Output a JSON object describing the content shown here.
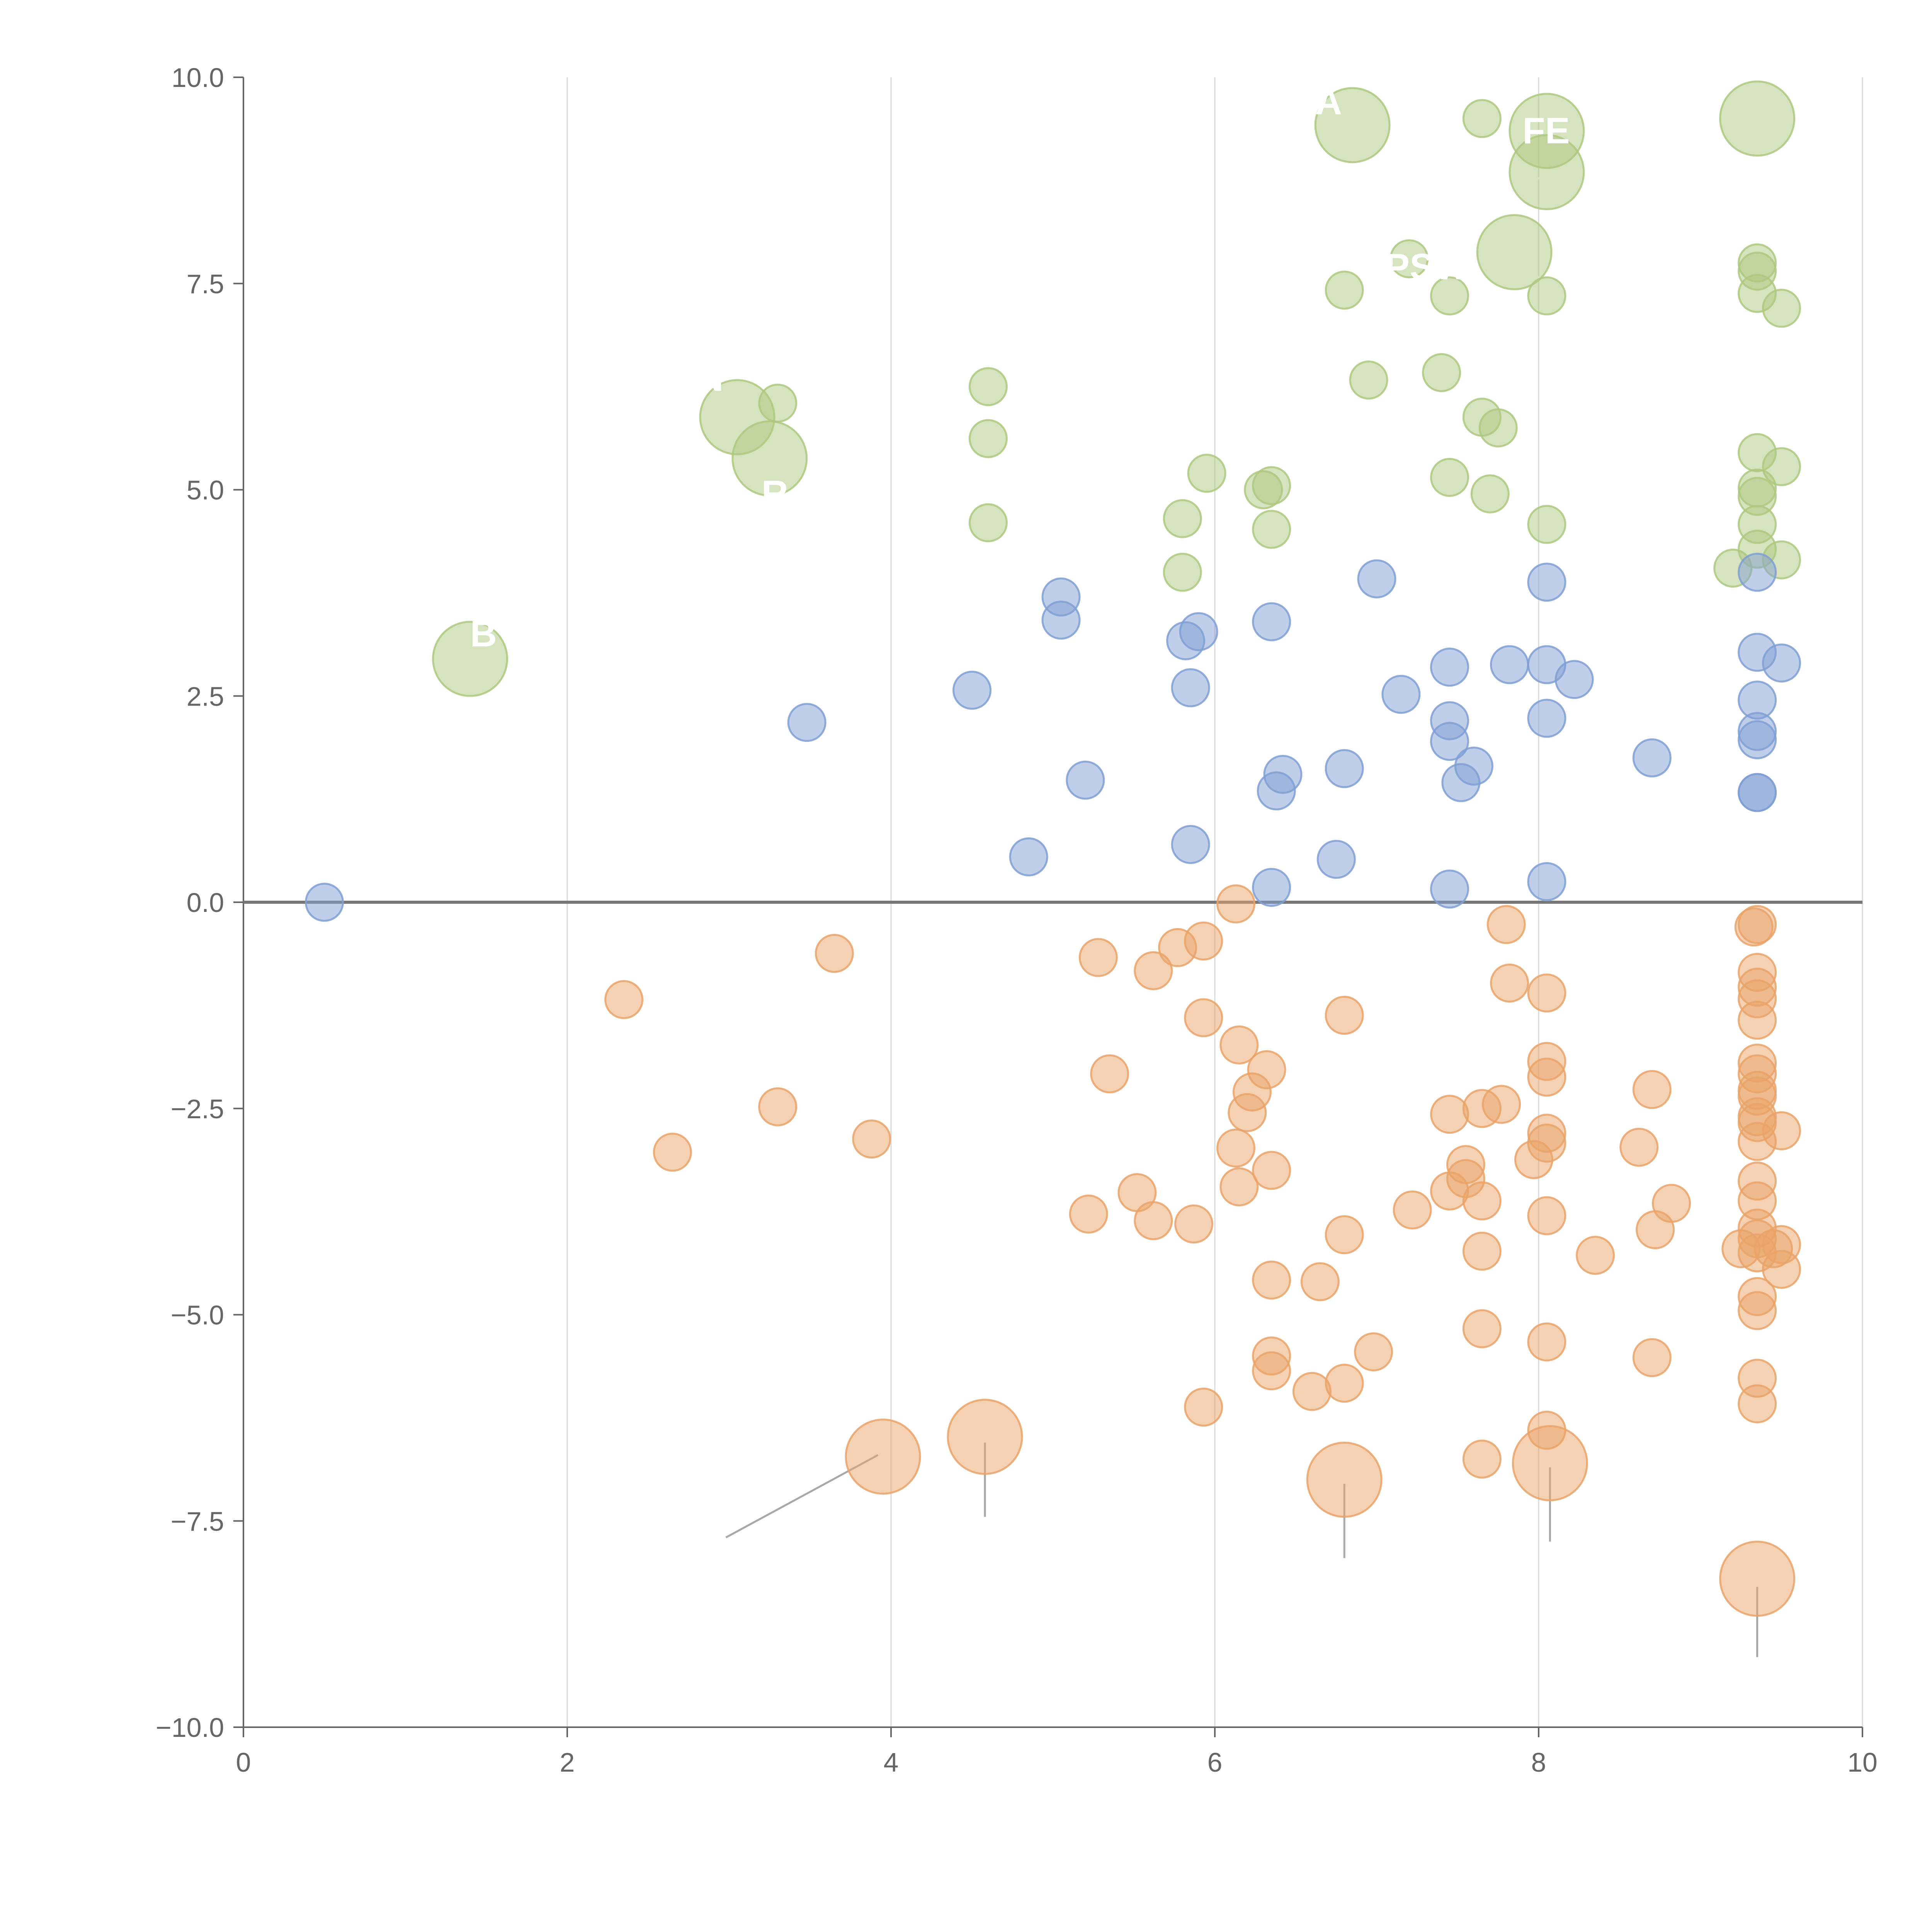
{
  "chart_data": {
    "type": "scatter",
    "title": "",
    "xlabel": "",
    "ylabel": "",
    "xlim": [
      0,
      10
    ],
    "ylim": [
      -10,
      10
    ],
    "x_ticks": [
      "0",
      "2",
      "4",
      "6",
      "8",
      "10"
    ],
    "y_ticks": [
      "−10.0",
      "−7.5",
      "−5.0",
      "−2.5",
      "0.0",
      "2.5",
      "5.0",
      "7.5",
      "10.0"
    ],
    "x_tick_values": [
      0,
      2,
      4,
      6,
      8,
      10
    ],
    "y_tick_values": [
      -10,
      -7.5,
      -5,
      -2.5,
      0,
      2.5,
      5,
      7.5,
      10
    ],
    "grid": "vertical lines at x ticks",
    "reference_line": 0,
    "colors": {
      "positive": "#aec87f",
      "middle": "#7f9fd3",
      "negative": "#e9a368"
    },
    "series": [
      {
        "name": "positive",
        "color": "#aec87f",
        "points": [
          [
            6.85,
            9.42,
            3
          ],
          [
            7.65,
            9.5,
            1
          ],
          [
            8.05,
            9.35,
            3
          ],
          [
            9.35,
            9.5,
            3
          ],
          [
            8.05,
            8.85,
            3
          ],
          [
            7.2,
            7.8,
            1
          ],
          [
            7.85,
            7.88,
            3
          ],
          [
            6.8,
            7.42,
            1
          ],
          [
            7.45,
            7.35,
            1
          ],
          [
            8.05,
            7.35,
            1
          ],
          [
            9.35,
            7.75,
            1
          ],
          [
            9.35,
            7.65,
            1
          ],
          [
            9.35,
            7.38,
            1
          ],
          [
            9.5,
            7.2,
            1
          ],
          [
            4.6,
            6.25,
            1
          ],
          [
            3.3,
            6.05,
            1
          ],
          [
            3.05,
            5.88,
            3
          ],
          [
            6.95,
            6.33,
            1
          ],
          [
            7.4,
            6.42,
            1
          ],
          [
            7.65,
            5.88,
            1
          ],
          [
            7.75,
            5.75,
            1
          ],
          [
            4.6,
            5.62,
            1
          ],
          [
            3.25,
            5.38,
            3
          ],
          [
            9.35,
            5.45,
            1
          ],
          [
            9.5,
            5.28,
            1
          ],
          [
            5.95,
            5.2,
            1
          ],
          [
            7.45,
            5.15,
            1
          ],
          [
            6.3,
            5.0,
            1
          ],
          [
            6.35,
            5.05,
            1
          ],
          [
            7.7,
            4.95,
            1
          ],
          [
            9.35,
            5.02,
            1
          ],
          [
            9.35,
            4.92,
            1
          ],
          [
            5.8,
            4.65,
            1
          ],
          [
            4.6,
            4.6,
            1
          ],
          [
            6.35,
            4.52,
            1
          ],
          [
            8.05,
            4.58,
            1
          ],
          [
            9.35,
            4.58,
            1
          ],
          [
            9.35,
            4.28,
            1
          ],
          [
            9.5,
            4.15,
            1
          ],
          [
            9.2,
            4.05,
            1
          ],
          [
            5.8,
            4.0,
            1
          ],
          [
            1.4,
            2.95,
            3
          ]
        ]
      },
      {
        "name": "middle",
        "color": "#7f9fd3",
        "points": [
          [
            0.5,
            0.0,
            1
          ],
          [
            3.48,
            2.18,
            1
          ],
          [
            4.5,
            2.57,
            1
          ],
          [
            4.85,
            0.55,
            1
          ],
          [
            5.05,
            3.7,
            1
          ],
          [
            5.05,
            3.42,
            1
          ],
          [
            5.2,
            1.48,
            1
          ],
          [
            5.82,
            3.17,
            1
          ],
          [
            5.9,
            3.28,
            1
          ],
          [
            5.85,
            2.6,
            1
          ],
          [
            5.85,
            0.7,
            1
          ],
          [
            6.35,
            3.4,
            1
          ],
          [
            6.42,
            1.55,
            1
          ],
          [
            6.38,
            1.35,
            1
          ],
          [
            6.35,
            0.18,
            1
          ],
          [
            6.8,
            1.62,
            1
          ],
          [
            6.75,
            0.52,
            1
          ],
          [
            7.0,
            3.92,
            1
          ],
          [
            7.15,
            2.52,
            1
          ],
          [
            7.45,
            2.85,
            1
          ],
          [
            7.45,
            2.2,
            1
          ],
          [
            7.45,
            1.95,
            1
          ],
          [
            7.6,
            1.65,
            1
          ],
          [
            7.52,
            1.45,
            1
          ],
          [
            7.45,
            0.16,
            1
          ],
          [
            7.82,
            2.88,
            1
          ],
          [
            8.05,
            3.88,
            1
          ],
          [
            8.05,
            2.88,
            1
          ],
          [
            8.22,
            2.7,
            1
          ],
          [
            8.05,
            2.23,
            1
          ],
          [
            8.05,
            0.25,
            1
          ],
          [
            8.7,
            1.75,
            1
          ],
          [
            9.35,
            4.0,
            1
          ],
          [
            9.35,
            3.03,
            1
          ],
          [
            9.5,
            2.9,
            1
          ],
          [
            9.35,
            2.45,
            1
          ],
          [
            9.35,
            2.07,
            1
          ],
          [
            9.35,
            1.97,
            1
          ],
          [
            9.35,
            1.33,
            1
          ],
          [
            9.35,
            1.33,
            1
          ]
        ]
      },
      {
        "name": "negative",
        "color": "#e9a368",
        "points": [
          [
            3.65,
            -0.62,
            1
          ],
          [
            2.35,
            -1.18,
            1
          ],
          [
            3.3,
            -2.48,
            1
          ],
          [
            2.65,
            -3.03,
            1
          ],
          [
            3.88,
            -2.87,
            1
          ],
          [
            5.28,
            -0.67,
            1
          ],
          [
            5.35,
            -2.08,
            1
          ],
          [
            5.22,
            -3.78,
            1
          ],
          [
            5.52,
            -3.52,
            1
          ],
          [
            5.62,
            -0.83,
            1
          ],
          [
            5.77,
            -0.55,
            1
          ],
          [
            5.93,
            -0.47,
            1
          ],
          [
            5.93,
            -1.4,
            1
          ],
          [
            5.62,
            -3.86,
            1
          ],
          [
            5.87,
            -3.9,
            1
          ],
          [
            5.93,
            -6.12,
            1
          ],
          [
            6.13,
            -0.02,
            1
          ],
          [
            6.15,
            -1.73,
            1
          ],
          [
            6.32,
            -2.03,
            1
          ],
          [
            6.23,
            -2.3,
            1
          ],
          [
            6.2,
            -2.55,
            1
          ],
          [
            6.13,
            -2.98,
            1
          ],
          [
            6.35,
            -3.25,
            1
          ],
          [
            6.15,
            -3.45,
            1
          ],
          [
            6.35,
            -4.58,
            1
          ],
          [
            6.35,
            -5.5,
            1
          ],
          [
            6.35,
            -5.68,
            1
          ],
          [
            6.65,
            -4.6,
            1
          ],
          [
            6.6,
            -5.93,
            1
          ],
          [
            6.8,
            -1.37,
            1
          ],
          [
            6.8,
            -4.03,
            1
          ],
          [
            6.8,
            -5.83,
            1
          ],
          [
            6.98,
            -5.45,
            1
          ],
          [
            7.22,
            -3.73,
            1
          ],
          [
            7.45,
            -2.57,
            1
          ],
          [
            7.55,
            -3.18,
            1
          ],
          [
            7.55,
            -3.35,
            1
          ],
          [
            7.45,
            -3.5,
            1
          ],
          [
            7.65,
            -2.5,
            1
          ],
          [
            7.77,
            -2.45,
            1
          ],
          [
            7.65,
            -3.62,
            1
          ],
          [
            7.65,
            -4.23,
            1
          ],
          [
            7.65,
            -5.17,
            1
          ],
          [
            7.65,
            -6.75,
            1
          ],
          [
            7.8,
            -0.27,
            1
          ],
          [
            7.82,
            -0.98,
            1
          ],
          [
            7.97,
            -3.12,
            1
          ],
          [
            8.05,
            -1.1,
            1
          ],
          [
            8.05,
            -1.93,
            1
          ],
          [
            8.05,
            -2.12,
            1
          ],
          [
            8.05,
            -2.8,
            1
          ],
          [
            8.05,
            -2.92,
            1
          ],
          [
            8.05,
            -3.8,
            1
          ],
          [
            8.05,
            -5.33,
            1
          ],
          [
            8.05,
            -6.4,
            1
          ],
          [
            8.35,
            -4.28,
            1
          ],
          [
            8.62,
            -2.97,
            1
          ],
          [
            8.7,
            -2.27,
            1
          ],
          [
            8.72,
            -3.97,
            1
          ],
          [
            8.82,
            -3.65,
            1
          ],
          [
            8.7,
            -5.52,
            1
          ],
          [
            9.35,
            -0.27,
            1
          ],
          [
            9.33,
            -0.3,
            1
          ],
          [
            9.35,
            -0.85,
            1
          ],
          [
            9.35,
            -1.03,
            1
          ],
          [
            9.35,
            -1.17,
            1
          ],
          [
            9.35,
            -1.43,
            1
          ],
          [
            9.35,
            -1.95,
            1
          ],
          [
            9.35,
            -2.08,
            1
          ],
          [
            9.35,
            -2.28,
            1
          ],
          [
            9.35,
            -2.35,
            1
          ],
          [
            9.35,
            -2.6,
            1
          ],
          [
            9.35,
            -2.67,
            1
          ],
          [
            9.35,
            -2.9,
            1
          ],
          [
            9.5,
            -2.77,
            1
          ],
          [
            9.35,
            -3.38,
            1
          ],
          [
            9.35,
            -3.62,
            1
          ],
          [
            9.35,
            -3.95,
            1
          ],
          [
            9.35,
            -4.08,
            1
          ],
          [
            9.25,
            -4.2,
            1
          ],
          [
            9.35,
            -4.25,
            1
          ],
          [
            9.45,
            -4.2,
            1
          ],
          [
            9.5,
            -4.15,
            1
          ],
          [
            9.5,
            -4.45,
            1
          ],
          [
            9.35,
            -4.78,
            1
          ],
          [
            9.35,
            -4.95,
            1
          ],
          [
            9.35,
            -5.77,
            1
          ],
          [
            9.35,
            -6.08,
            1
          ],
          [
            3.95,
            -6.72,
            3
          ],
          [
            4.58,
            -6.48,
            3
          ],
          [
            6.8,
            -7.0,
            3
          ],
          [
            8.07,
            -6.8,
            3
          ],
          [
            9.35,
            -8.2,
            3
          ]
        ]
      }
    ],
    "leader_lines": [
      {
        "from": [
          3.92,
          -6.7
        ],
        "to": [
          2.98,
          -7.7
        ],
        "style": "gray"
      },
      {
        "from": [
          4.58,
          -6.55
        ],
        "to": [
          4.58,
          -7.45
        ],
        "style": "gray"
      },
      {
        "from": [
          6.8,
          -7.05
        ],
        "to": [
          6.8,
          -7.95
        ],
        "style": "gray"
      },
      {
        "from": [
          8.07,
          -6.85
        ],
        "to": [
          8.07,
          -7.75
        ],
        "style": "gray"
      },
      {
        "from": [
          9.35,
          -8.3
        ],
        "to": [
          9.35,
          -9.15
        ],
        "style": "gray"
      },
      {
        "from": [
          6.8,
          9.42
        ],
        "to": [
          6.6,
          9.4
        ],
        "style": "light"
      },
      {
        "from": [
          8.05,
          8.85
        ],
        "to": [
          7.92,
          8.65
        ],
        "style": "light"
      },
      {
        "from": [
          9.35,
          9.5
        ],
        "to": [
          9.3,
          9.1
        ],
        "style": "light"
      },
      {
        "from": [
          7.85,
          7.85
        ],
        "to": [
          8.15,
          7.3
        ],
        "style": "light"
      },
      {
        "from": [
          3.05,
          5.88
        ],
        "to": [
          2.9,
          6.1
        ],
        "style": "light"
      },
      {
        "from": [
          3.25,
          5.38
        ],
        "to": [
          3.35,
          5.15
        ],
        "style": "light"
      },
      {
        "from": [
          1.4,
          2.95
        ],
        "to": [
          1.62,
          3.25
        ],
        "style": "light"
      }
    ],
    "annotations": [
      {
        "text": "A",
        "x": 6.62,
        "y": 9.55
      },
      {
        "text": "FE",
        "x": 7.9,
        "y": 9.2
      },
      {
        "text": "PSW",
        "x": 7.05,
        "y": 7.55
      },
      {
        "text": "N",
        "x": 2.8,
        "y": 6.2
      },
      {
        "text": "R",
        "x": 3.2,
        "y": 4.8
      },
      {
        "text": "B E",
        "x": 1.4,
        "y": 3.1
      }
    ]
  }
}
